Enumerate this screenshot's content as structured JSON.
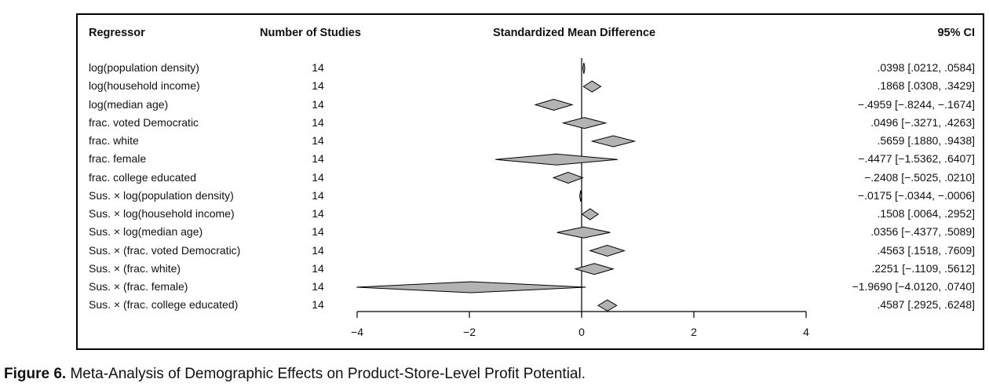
{
  "headers": {
    "regressor": "Regressor",
    "studies": "Number of Studies",
    "smd": "Standardized Mean Difference",
    "ci": "95% CI"
  },
  "caption": {
    "label": "Figure 6.",
    "text": "Meta-Analysis of Demographic Effects on Product-Store-Level Profit Potential."
  },
  "chart_data": {
    "type": "forest",
    "xlim": [
      -4,
      4
    ],
    "xticks": [
      -4,
      -2,
      0,
      2,
      4
    ],
    "xtick_labels": [
      "−4",
      "−2",
      "0",
      "2",
      "4"
    ],
    "reference_line": 0,
    "grid": false,
    "rows": [
      {
        "regressor": "log(population density)",
        "studies": "14",
        "est": 0.0398,
        "lo": 0.0212,
        "hi": 0.0584,
        "ci": ".0398 [.0212, .0584]"
      },
      {
        "regressor": "log(household income)",
        "studies": "14",
        "est": 0.1868,
        "lo": 0.0308,
        "hi": 0.3429,
        "ci": ".1868 [.0308, .3429]"
      },
      {
        "regressor": "log(median age)",
        "studies": "14",
        "est": -0.4959,
        "lo": -0.8244,
        "hi": -0.1674,
        "ci": "−.4959 [−.8244, −.1674]"
      },
      {
        "regressor": "frac. voted Democratic",
        "studies": "14",
        "est": 0.0496,
        "lo": -0.3271,
        "hi": 0.4263,
        "ci": ".0496 [−.3271, .4263]"
      },
      {
        "regressor": "frac. white",
        "studies": "14",
        "est": 0.5659,
        "lo": 0.188,
        "hi": 0.9438,
        "ci": ".5659 [.1880, .9438]"
      },
      {
        "regressor": "frac. female",
        "studies": "14",
        "est": -0.4477,
        "lo": -1.5362,
        "hi": 0.6407,
        "ci": "−.4477 [−1.5362, .6407]"
      },
      {
        "regressor": "frac. college educated",
        "studies": "14",
        "est": -0.2408,
        "lo": -0.5025,
        "hi": 0.021,
        "ci": "−.2408 [−.5025, .0210]"
      },
      {
        "regressor": "Sus. × log(population density)",
        "studies": "14",
        "est": -0.0175,
        "lo": -0.0344,
        "hi": -0.0006,
        "ci": "−.0175 [−.0344, −.0006]"
      },
      {
        "regressor": "Sus. × log(household income)",
        "studies": "14",
        "est": 0.1508,
        "lo": 0.0064,
        "hi": 0.2952,
        "ci": ".1508 [.0064, .2952]"
      },
      {
        "regressor": "Sus. × log(median age)",
        "studies": "14",
        "est": 0.0356,
        "lo": -0.4377,
        "hi": 0.5089,
        "ci": ".0356 [−.4377, .5089]"
      },
      {
        "regressor": "Sus. × (frac. voted Democratic)",
        "studies": "14",
        "est": 0.4563,
        "lo": 0.1518,
        "hi": 0.7609,
        "ci": ".4563 [.1518, .7609]"
      },
      {
        "regressor": "Sus. × (frac. white)",
        "studies": "14",
        "est": 0.2251,
        "lo": -0.1109,
        "hi": 0.5612,
        "ci": ".2251 [−.1109, .5612]"
      },
      {
        "regressor": "Sus. × (frac. female)",
        "studies": "14",
        "est": -1.969,
        "lo": -4.012,
        "hi": 0.074,
        "ci": "−1.9690 [−4.0120, .0740]"
      },
      {
        "regressor": "Sus. × (frac. college educated)",
        "studies": "14",
        "est": 0.4587,
        "lo": 0.2925,
        "hi": 0.6248,
        "ci": ".4587 [.2925, .6248]"
      }
    ],
    "colors": {
      "diamond_fill": "#b3b3b3",
      "stroke": "#000000"
    }
  }
}
